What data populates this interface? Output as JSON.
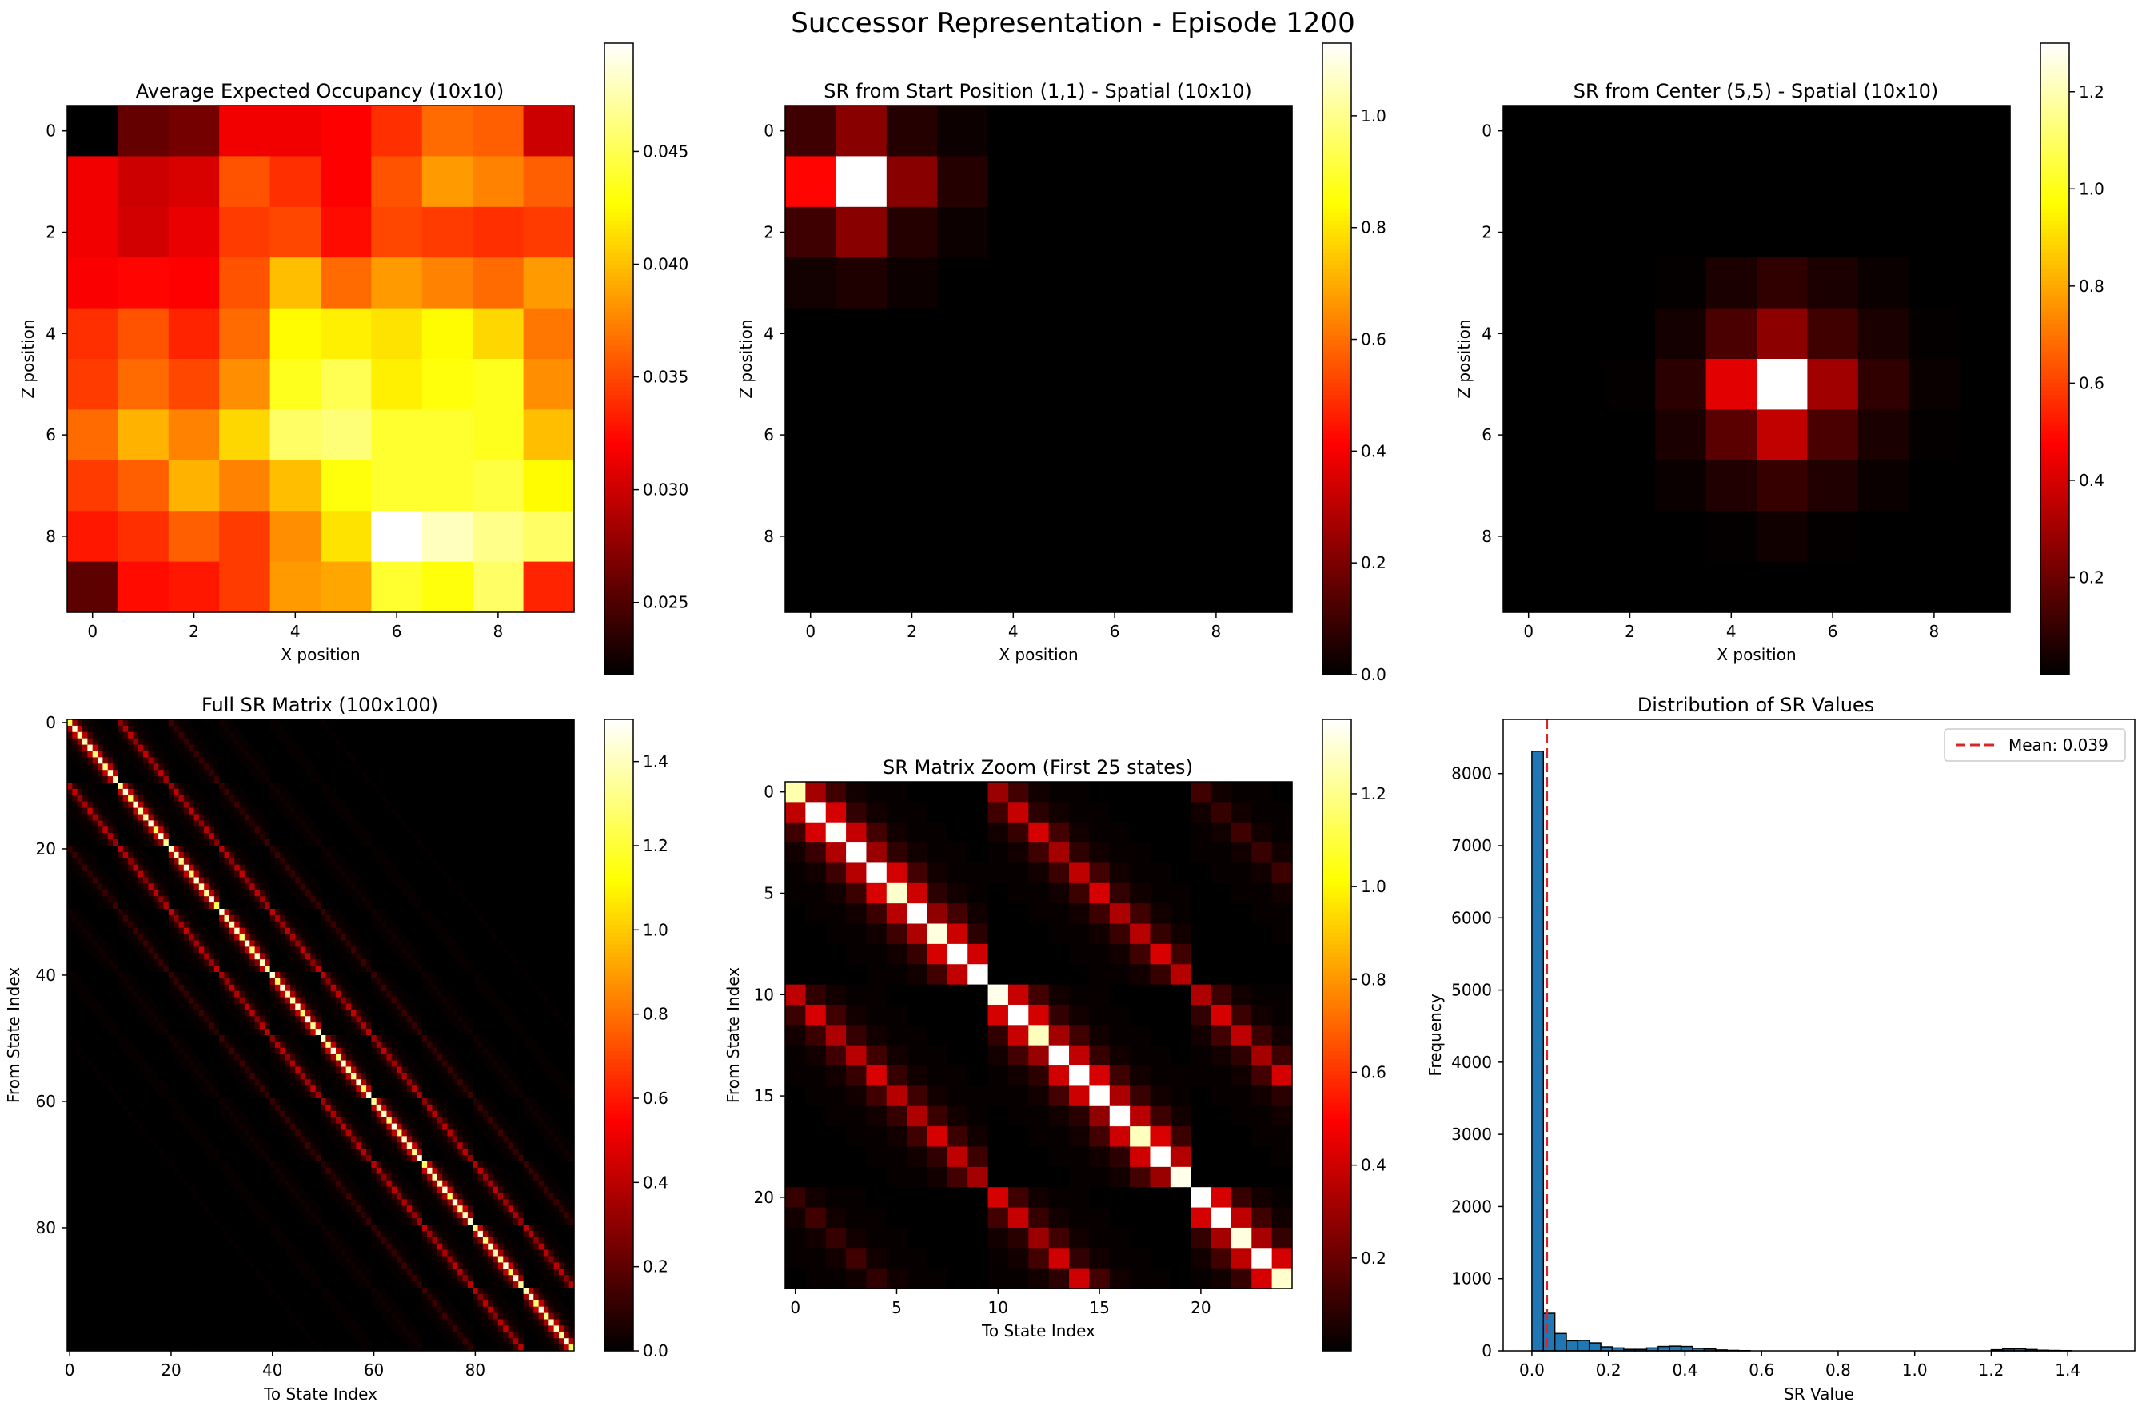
{
  "figure": {
    "title": "Successor Representation - Episode 1200"
  },
  "chart_data": [
    {
      "type": "heatmap",
      "title": "Average Expected Occupancy (10x10)",
      "xlabel": "X position",
      "ylabel": "Z position",
      "xticks": [
        0,
        2,
        4,
        6,
        8
      ],
      "yticks": [
        0,
        2,
        4,
        6,
        8
      ],
      "colormap": "hot",
      "vmin": 0.0218,
      "vmax": 0.0498,
      "colorbar_ticks": [
        0.025,
        0.03,
        0.035,
        0.04,
        0.045
      ],
      "colorbar_tick_labels": [
        "0.025",
        "0.030",
        "0.035",
        "0.040",
        "0.045"
      ],
      "grid": [
        [
          0.0218,
          0.0258,
          0.0265,
          0.0315,
          0.0315,
          0.032,
          0.034,
          0.0365,
          0.036,
          0.03
        ],
        [
          0.0315,
          0.03,
          0.0305,
          0.0355,
          0.034,
          0.032,
          0.0355,
          0.0385,
          0.0375,
          0.036
        ],
        [
          0.0315,
          0.0302,
          0.0312,
          0.0345,
          0.035,
          0.0325,
          0.035,
          0.0345,
          0.034,
          0.0345
        ],
        [
          0.0318,
          0.0322,
          0.032,
          0.0355,
          0.04,
          0.0365,
          0.0385,
          0.0375,
          0.0365,
          0.0385
        ],
        [
          0.034,
          0.0355,
          0.0335,
          0.0365,
          0.0425,
          0.042,
          0.0415,
          0.0425,
          0.041,
          0.037
        ],
        [
          0.0345,
          0.0365,
          0.035,
          0.038,
          0.0435,
          0.045,
          0.042,
          0.043,
          0.0435,
          0.038
        ],
        [
          0.0365,
          0.0395,
          0.0375,
          0.041,
          0.0455,
          0.046,
          0.044,
          0.044,
          0.0435,
          0.04
        ],
        [
          0.0345,
          0.036,
          0.0395,
          0.0375,
          0.04,
          0.043,
          0.044,
          0.044,
          0.0445,
          0.0425
        ],
        [
          0.033,
          0.034,
          0.036,
          0.0345,
          0.038,
          0.0415,
          0.0498,
          0.048,
          0.0465,
          0.0455
        ],
        [
          0.0255,
          0.0325,
          0.033,
          0.0345,
          0.0385,
          0.039,
          0.044,
          0.043,
          0.0455,
          0.0335
        ]
      ]
    },
    {
      "type": "heatmap",
      "title": "SR from Start Position (1,1) - Spatial (10x10)",
      "xlabel": "X position",
      "ylabel": "Z position",
      "xticks": [
        0,
        2,
        4,
        6,
        8
      ],
      "yticks": [
        0,
        2,
        4,
        6,
        8
      ],
      "colormap": "hot",
      "vmin": 0.0,
      "vmax": 1.13,
      "colorbar_ticks": [
        0.0,
        0.2,
        0.4,
        0.6,
        0.8,
        1.0
      ],
      "colorbar_tick_labels": [
        "0.0",
        "0.2",
        "0.4",
        "0.6",
        "0.8",
        "1.0"
      ],
      "grid": [
        [
          0.1,
          0.22,
          0.06,
          0.02,
          0,
          0,
          0,
          0,
          0,
          0
        ],
        [
          0.42,
          1.13,
          0.22,
          0.06,
          0,
          0,
          0,
          0,
          0,
          0
        ],
        [
          0.1,
          0.22,
          0.06,
          0.02,
          0,
          0,
          0,
          0,
          0,
          0
        ],
        [
          0.03,
          0.05,
          0.02,
          0,
          0,
          0,
          0,
          0,
          0,
          0
        ],
        [
          0,
          0,
          0,
          0,
          0,
          0,
          0,
          0,
          0,
          0
        ],
        [
          0,
          0,
          0,
          0,
          0,
          0,
          0,
          0,
          0,
          0
        ],
        [
          0,
          0,
          0,
          0,
          0,
          0,
          0,
          0,
          0,
          0
        ],
        [
          0,
          0,
          0,
          0,
          0,
          0,
          0,
          0,
          0,
          0
        ],
        [
          0,
          0,
          0,
          0,
          0,
          0,
          0,
          0,
          0,
          0
        ],
        [
          0,
          0,
          0,
          0,
          0,
          0,
          0,
          0,
          0,
          0
        ]
      ]
    },
    {
      "type": "heatmap",
      "title": "SR from Center (5,5) - Spatial (10x10)",
      "xlabel": "X position",
      "ylabel": "Z position",
      "xticks": [
        0,
        2,
        4,
        6,
        8
      ],
      "yticks": [
        0,
        2,
        4,
        6,
        8
      ],
      "colormap": "hot",
      "vmin": 0.0,
      "vmax": 1.3,
      "colorbar_ticks": [
        0.2,
        0.4,
        0.6,
        0.8,
        1.0,
        1.2
      ],
      "colorbar_tick_labels": [
        "0.2",
        "0.4",
        "0.6",
        "0.8",
        "1.0",
        "1.2"
      ],
      "grid": [
        [
          0,
          0,
          0,
          0,
          0,
          0,
          0,
          0,
          0,
          0
        ],
        [
          0,
          0,
          0,
          0,
          0,
          0,
          0,
          0,
          0,
          0
        ],
        [
          0,
          0,
          0,
          0,
          0,
          0,
          0,
          0,
          0,
          0
        ],
        [
          0,
          0,
          0,
          0.01,
          0.05,
          0.09,
          0.05,
          0.02,
          0,
          0
        ],
        [
          0,
          0,
          0,
          0.04,
          0.14,
          0.26,
          0.12,
          0.05,
          0.01,
          0
        ],
        [
          0,
          0,
          0.01,
          0.08,
          0.42,
          1.3,
          0.3,
          0.09,
          0.02,
          0
        ],
        [
          0,
          0,
          0,
          0.05,
          0.17,
          0.36,
          0.14,
          0.05,
          0.01,
          0
        ],
        [
          0,
          0,
          0,
          0.02,
          0.06,
          0.1,
          0.06,
          0.02,
          0,
          0
        ],
        [
          0,
          0,
          0,
          0,
          0.01,
          0.03,
          0.01,
          0,
          0,
          0
        ],
        [
          0,
          0,
          0,
          0,
          0,
          0,
          0,
          0,
          0,
          0
        ]
      ]
    },
    {
      "type": "heatmap",
      "title": "Full SR Matrix (100x100)",
      "xlabel": "To State Index",
      "ylabel": "From State Index",
      "size": 100,
      "xticks": [
        0,
        20,
        40,
        60,
        80
      ],
      "yticks": [
        0,
        20,
        40,
        60,
        80
      ],
      "colormap": "hot",
      "vmin": 0.0,
      "vmax": 1.5,
      "colorbar_ticks": [
        0.0,
        0.2,
        0.4,
        0.6,
        0.8,
        1.0,
        1.2,
        1.4
      ],
      "colorbar_tick_labels": [
        "0.0",
        "0.2",
        "0.4",
        "0.6",
        "0.8",
        "1.0",
        "1.2",
        "1.4"
      ],
      "pattern": "10x10 grid-world SR: bright diagonal ~1.2-1.5, neighbor diagonals at offsets of 1 and 10 ~0.2-0.45, faint diagonals at offsets 20-30"
    },
    {
      "type": "heatmap",
      "title": "SR Matrix Zoom (First 25 states)",
      "xlabel": "To State Index",
      "ylabel": "From State Index",
      "size": 25,
      "xticks": [
        0,
        5,
        10,
        15,
        20
      ],
      "yticks": [
        0,
        5,
        10,
        15,
        20
      ],
      "colormap": "hot",
      "vmin": 0.0,
      "vmax": 1.36,
      "colorbar_ticks": [
        0.2,
        0.4,
        0.6,
        0.8,
        1.0,
        1.2
      ],
      "colorbar_tick_labels": [
        "0.2",
        "0.4",
        "0.6",
        "0.8",
        "1.0",
        "1.2"
      ],
      "pattern": "first 25x25 block of the SR matrix: diagonal ~1.2-1.36, offsets of 1 and 10 ~0.25-0.45"
    },
    {
      "type": "bar",
      "subtype": "histogram",
      "title": "Distribution of SR Values",
      "xlabel": "SR Value",
      "ylabel": "Frequency",
      "xlim": [
        -0.075,
        1.575
      ],
      "ylim": [
        0,
        8750
      ],
      "xticks": [
        0.0,
        0.2,
        0.4,
        0.6,
        0.8,
        1.0,
        1.2,
        1.4
      ],
      "xtick_labels": [
        "0.0",
        "0.2",
        "0.4",
        "0.6",
        "0.8",
        "1.0",
        "1.2",
        "1.4"
      ],
      "yticks": [
        0,
        1000,
        2000,
        3000,
        4000,
        5000,
        6000,
        7000,
        8000
      ],
      "bin_width": 0.03,
      "bin_start": 0.0,
      "counts": [
        8310,
        520,
        240,
        140,
        145,
        110,
        55,
        40,
        20,
        20,
        40,
        60,
        65,
        60,
        35,
        25,
        12,
        6,
        3,
        0,
        0,
        0,
        0,
        0,
        0,
        0,
        0,
        0,
        0,
        0,
        0,
        0,
        0,
        0,
        0,
        0,
        0,
        0,
        0,
        0,
        15,
        25,
        28,
        18,
        8,
        5,
        3,
        0,
        0,
        0
      ],
      "bar_color": "#1f77b4",
      "mean": 0.039,
      "mean_line_color": "#d62728",
      "legend": {
        "label": "Mean: 0.039",
        "loc": "upper right"
      }
    }
  ]
}
